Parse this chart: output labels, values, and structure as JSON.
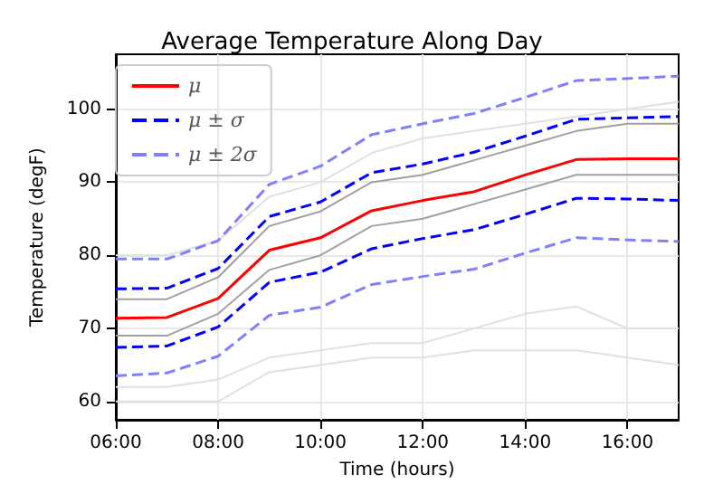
{
  "chart_data": {
    "type": "line",
    "title": "Average Temperature Along Day",
    "xlabel": "Time (hours)",
    "ylabel": "Temperature (degF)",
    "x": [
      6,
      7,
      8,
      9,
      10,
      11,
      12,
      13,
      14,
      15,
      16,
      17
    ],
    "series": [
      {
        "color": "#e0e0e0",
        "line_style": "solid",
        "values": [
          80,
          80,
          82,
          88,
          90,
          94,
          96,
          97,
          98,
          99,
          100,
          101
        ]
      },
      {
        "color": "#a0a0a0",
        "line_style": "solid",
        "values": [
          74,
          74,
          77,
          84,
          86,
          90,
          91,
          93,
          95,
          97,
          98,
          98
        ]
      },
      {
        "color": "#a0a0a0",
        "line_style": "solid",
        "values": [
          69,
          69,
          72,
          78,
          80,
          84,
          85,
          87,
          89,
          91,
          91,
          91
        ]
      },
      {
        "color": "#e0e0e0",
        "line_style": "solid",
        "values": [
          62,
          62,
          63,
          66,
          67,
          68,
          68,
          70,
          72,
          73,
          70,
          70
        ]
      },
      {
        "color": "#e0e0e0",
        "line_style": "solid",
        "values": [
          60,
          60,
          60,
          64,
          65,
          66,
          66,
          67,
          67,
          67,
          66,
          65
        ]
      },
      {
        "name": "μ",
        "color": "#ff0000",
        "line_style": "solid",
        "values": [
          71.4,
          71.5,
          74.1,
          80.7,
          82.4,
          86.1,
          87.5,
          88.7,
          91,
          93.1,
          93.2,
          93.2
        ]
      },
      {
        "name": "μ ± σ",
        "color": "#0000ff",
        "line_style": "dashed",
        "values": [
          75.4,
          75.5,
          78.2,
          85.3,
          87.3,
          91.3,
          92.5,
          94.1,
          96.3,
          98.6,
          98.8,
          99
        ]
      },
      {
        "color": "#0000ff",
        "line_style": "dashed",
        "values": [
          67.4,
          67.6,
          70.2,
          76.3,
          77.7,
          80.9,
          82.3,
          83.5,
          85.6,
          87.8,
          87.7,
          87.5
        ]
      },
      {
        "name": "μ ± 2σ",
        "color": "#8080ff",
        "line_style": "dashed",
        "values": [
          79.5,
          79.5,
          82,
          89.7,
          92.2,
          96.5,
          98,
          99.4,
          101.6,
          103.9,
          104.2,
          104.5
        ]
      },
      {
        "color": "#8080ff",
        "line_style": "dashed",
        "values": [
          63.5,
          63.9,
          66.2,
          71.8,
          72.9,
          76,
          77.1,
          78.1,
          80.3,
          82.4,
          82.1,
          81.9
        ]
      }
    ],
    "xlim": [
      6,
      17
    ],
    "xticks": [
      {
        "value": 6,
        "label": "06:00"
      },
      {
        "value": 8,
        "label": "08:00"
      },
      {
        "value": 10,
        "label": "10:00"
      },
      {
        "value": 12,
        "label": "12:00"
      },
      {
        "value": 14,
        "label": "14:00"
      },
      {
        "value": 16,
        "label": "16:00"
      }
    ],
    "ylim": [
      57.5,
      107.5
    ],
    "yticks": [
      60,
      70,
      80,
      90,
      100
    ],
    "grid": true,
    "legend": "top left",
    "marker": "none"
  }
}
